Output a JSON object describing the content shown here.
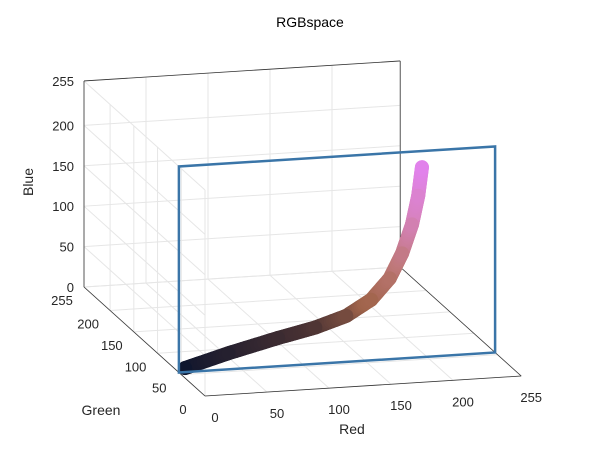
{
  "chart_data": {
    "type": "scatter",
    "title": "RGBspace",
    "xlabel": "Red",
    "ylabel": "Green",
    "zlabel": "Blue",
    "xlim": [
      0,
      255
    ],
    "ylim": [
      0,
      255
    ],
    "zlim": [
      0,
      255
    ],
    "x_ticks": [
      "0",
      "50",
      "100",
      "150",
      "200",
      "255"
    ],
    "y_ticks": [
      "0",
      "50",
      "100",
      "150",
      "200",
      "255"
    ],
    "z_ticks": [
      "0",
      "50",
      "100",
      "150",
      "200",
      "255"
    ],
    "grid": true,
    "plane": {
      "green": 55,
      "color": "#3a75a8"
    },
    "series": [
      {
        "green": 55,
        "points": [
          {
            "r": 5,
            "b": 5
          },
          {
            "r": 40,
            "b": 20
          },
          {
            "r": 80,
            "b": 35
          },
          {
            "r": 110,
            "b": 45
          },
          {
            "r": 135,
            "b": 57
          },
          {
            "r": 155,
            "b": 75
          },
          {
            "r": 170,
            "b": 100
          },
          {
            "r": 180,
            "b": 130
          },
          {
            "r": 188,
            "b": 165
          },
          {
            "r": 193,
            "b": 200
          },
          {
            "r": 196,
            "b": 235
          }
        ]
      }
    ]
  }
}
